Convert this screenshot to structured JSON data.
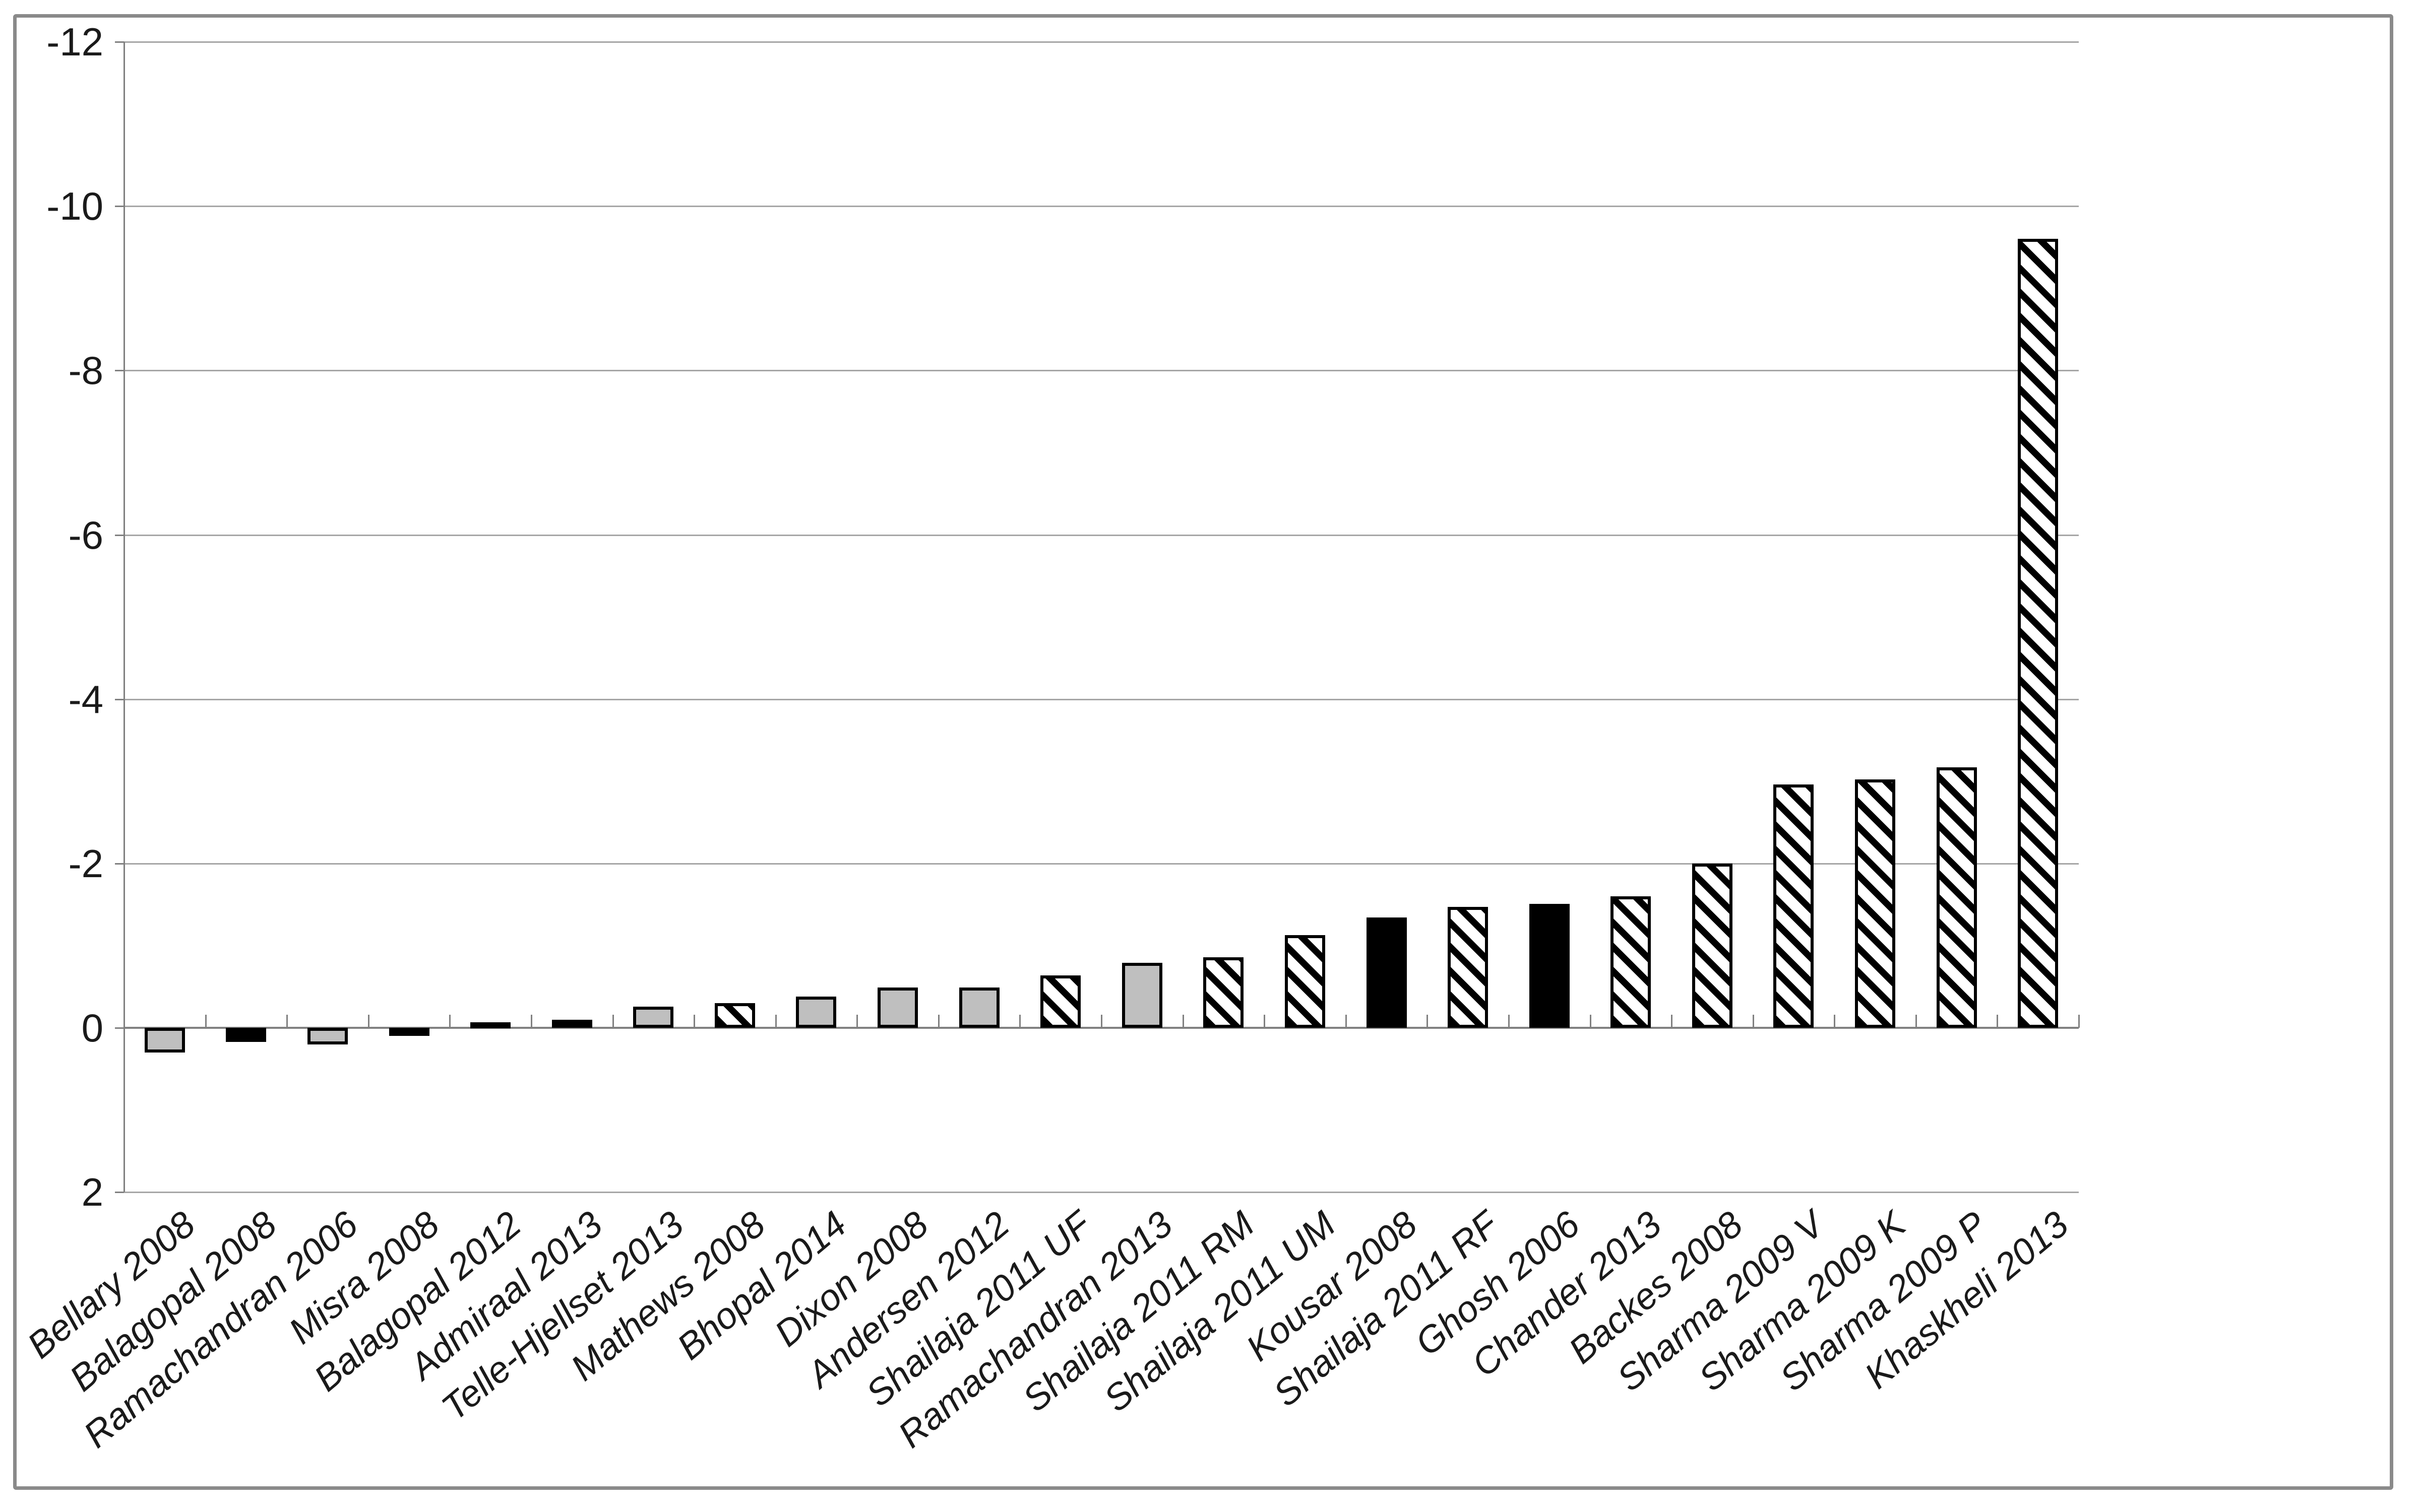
{
  "chart_data": {
    "type": "bar",
    "title": "",
    "xlabel": "",
    "ylabel": "",
    "categories": [
      "Bellary 2008",
      "Balagopal 2008",
      "Ramachandran 2006",
      "Misra 2008",
      "Balagopal 2012",
      "Admiraal 2013",
      "Telle-Hjellset 2013",
      "Mathews 2008",
      "Bhopal 2014",
      "Dixon 2008",
      "Andersen 2012",
      "Shailaja 2011 UF",
      "Ramachandran 2013",
      "Shailaja 2011 RM",
      "Shailaja 2011 UM",
      "Kousar 2008",
      "Shailaja 2011 RF",
      "Ghosh 2006",
      "Chander 2013",
      "Backes 2008",
      "Sharma 2009 V",
      "Sharma 2009 K",
      "Sharma 2009 P",
      "Khaskheli 2013"
    ],
    "values": [
      0.3,
      0.17,
      0.2,
      0.1,
      -0.07,
      -0.1,
      -0.26,
      -0.3,
      -0.38,
      -0.49,
      -0.49,
      -0.64,
      -0.79,
      -0.86,
      -1.13,
      -1.34,
      -1.47,
      -1.51,
      -1.6,
      -2.0,
      -2.96,
      -3.02,
      -3.17,
      -9.6
    ],
    "bar_styles": [
      "gray",
      "black",
      "gray",
      "black",
      "black",
      "black",
      "gray",
      "hatch",
      "gray",
      "gray",
      "gray",
      "hatch",
      "gray",
      "hatch",
      "hatch",
      "black",
      "hatch",
      "black",
      "hatch",
      "hatch",
      "hatch",
      "hatch",
      "hatch",
      "hatch"
    ],
    "y_ticks": [
      -12,
      -10,
      -8,
      -6,
      -4,
      -2,
      0,
      2
    ],
    "ylim": [
      -12,
      2
    ],
    "y_axis_reversed": true,
    "grid": "horizontal-gridlines-on",
    "legend": "none",
    "colors": {
      "gray_fill": "#bfbfbf",
      "black_fill": "#000000",
      "hatch_foreground": "#000000",
      "hatch_background": "#ffffff",
      "axis_line": "#808080",
      "gridline": "#a6a6a6",
      "tick_label_text": "#1a1a1a",
      "outer_border": "#8a8a8a",
      "plot_background": "#ffffff"
    }
  }
}
